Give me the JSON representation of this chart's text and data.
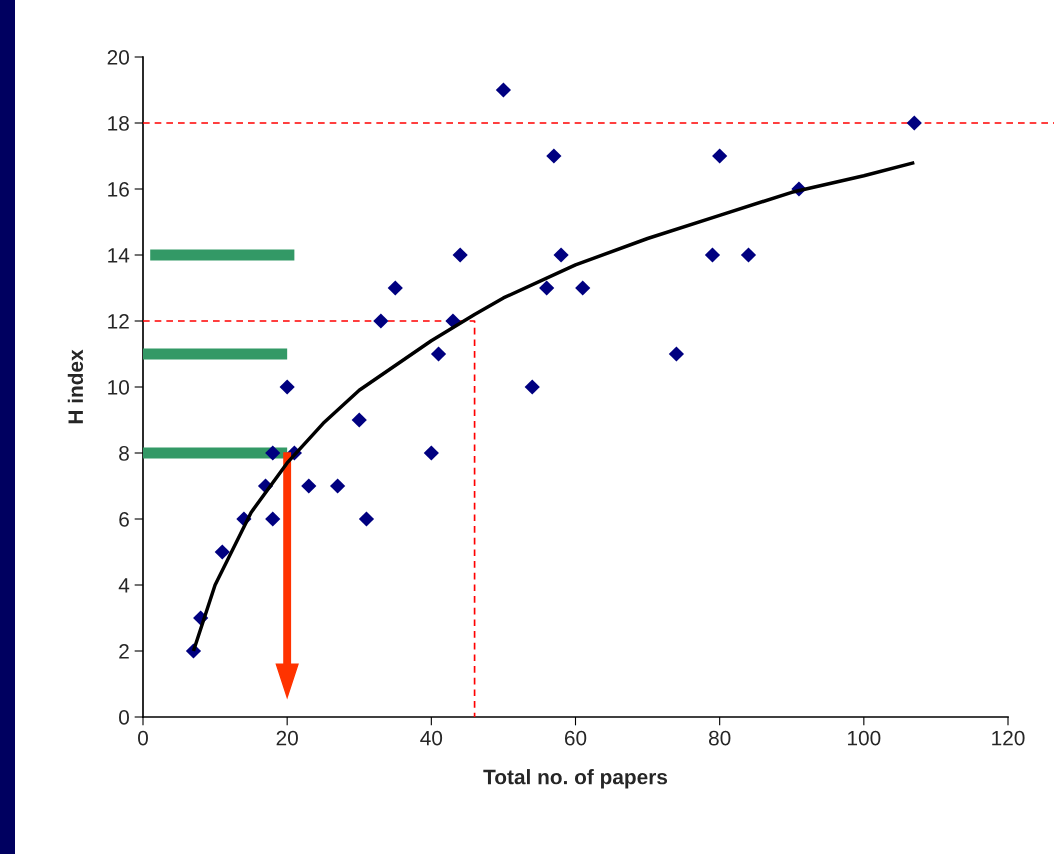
{
  "chart_data": {
    "type": "scatter",
    "xlabel": "Total no. of papers",
    "ylabel": "H index",
    "xlim": [
      0,
      120
    ],
    "xticks": [
      0,
      20,
      40,
      60,
      80,
      100,
      120
    ],
    "ylim": [
      0,
      20
    ],
    "yticks": [
      0,
      2,
      4,
      6,
      8,
      10,
      12,
      14,
      16,
      18,
      20
    ],
    "grid": false,
    "legend": false,
    "marker": "diamond",
    "series": [
      {
        "color": "#000080",
        "x": [
          7,
          8,
          11,
          14,
          17,
          18,
          18,
          20,
          21,
          23,
          27,
          30,
          31,
          33,
          35,
          40,
          41,
          43,
          44,
          50,
          54,
          56,
          57,
          58,
          61,
          74,
          79,
          80,
          84,
          91,
          107
        ],
        "values": [
          2,
          3,
          5,
          6,
          7,
          6,
          8,
          10,
          8,
          7,
          7,
          9,
          6,
          12,
          13,
          8,
          11,
          12,
          14,
          19,
          10,
          13,
          17,
          14,
          13,
          11,
          14,
          17,
          14,
          16,
          18
        ]
      },
      {
        "type": "line",
        "color": "#000000",
        "marker": "none",
        "line_style": "solid",
        "x": [
          7,
          10,
          15,
          20,
          25,
          30,
          40,
          46,
          50,
          60,
          70,
          80,
          90,
          100,
          107
        ],
        "values": [
          2.0,
          4.0,
          6.2,
          7.7,
          8.9,
          9.9,
          11.4,
          12.2,
          12.7,
          13.7,
          14.5,
          15.2,
          15.9,
          16.4,
          16.8
        ]
      },
      {
        "type": "line",
        "color": "#ff0000",
        "marker": "none",
        "line_style": "dashed",
        "x": [
          0,
          46,
          46
        ],
        "values": [
          12,
          12,
          0
        ]
      },
      {
        "type": "line",
        "color": "#339966",
        "marker": "none",
        "line_style": "solid",
        "x": [
          1,
          21
        ],
        "values": [
          14,
          14
        ]
      },
      {
        "type": "line",
        "color": "#339966",
        "marker": "none",
        "line_style": "solid",
        "x": [
          0,
          20
        ],
        "values": [
          11,
          11
        ]
      },
      {
        "type": "line",
        "color": "#339966",
        "marker": "none",
        "line_style": "solid",
        "x": [
          0,
          20
        ],
        "values": [
          8,
          8
        ]
      }
    ],
    "ref_lines": [
      {
        "axis": "y",
        "value": 18,
        "color": "#ff0000",
        "line_style": "dashed"
      }
    ]
  }
}
